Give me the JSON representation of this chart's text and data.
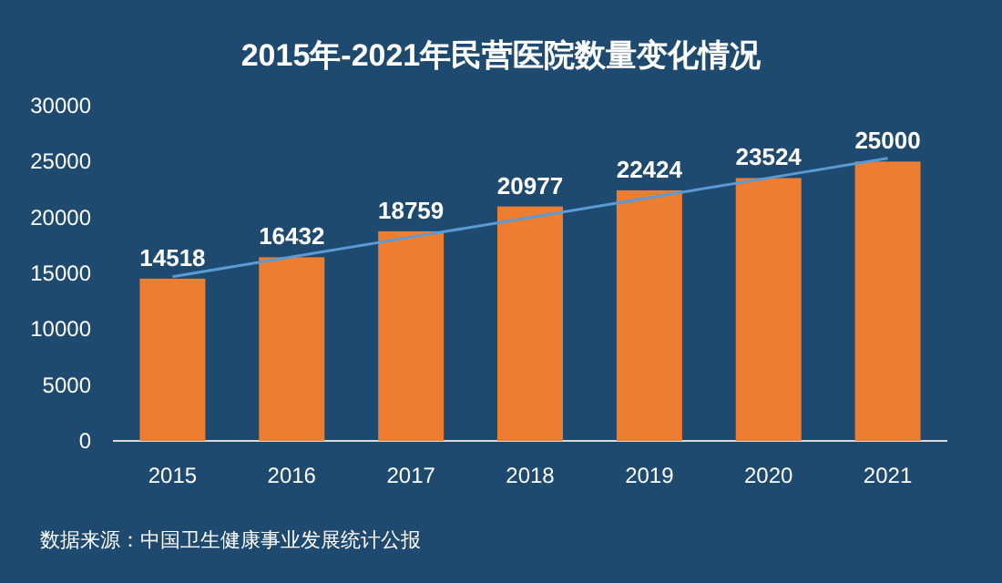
{
  "chart_data": {
    "type": "bar",
    "title": "2015年-2021年民营医院数量变化情况",
    "categories": [
      "2015",
      "2016",
      "2017",
      "2018",
      "2019",
      "2020",
      "2021"
    ],
    "series": [
      {
        "color": "#ed7d31",
        "values": [
          14518,
          16432,
          18759,
          20977,
          22424,
          23524,
          25000
        ],
        "value_labels": [
          "14518",
          "16432",
          "18759",
          "20977",
          "22424",
          "23524",
          "25000"
        ]
      },
      {
        "type": "line",
        "color": "#5b9bd5",
        "values": [
          14700,
          16470,
          18230,
          20000,
          21770,
          23530,
          25300
        ]
      }
    ],
    "ylim": [
      0,
      30000
    ],
    "yticks": [
      0,
      5000,
      10000,
      15000,
      20000,
      25000,
      30000
    ],
    "grid": false,
    "annotations": [
      "数据来源：中国卫生健康事业发展统计公报"
    ]
  }
}
